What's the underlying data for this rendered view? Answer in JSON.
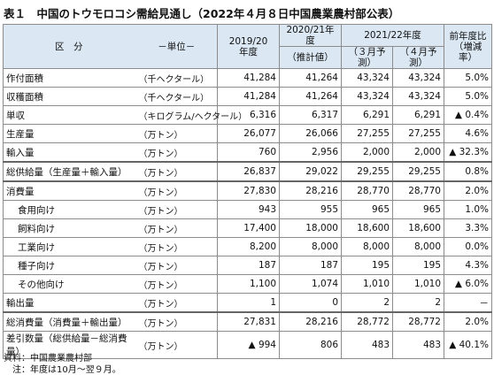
{
  "title": "表１　中国のトウモロコシ需給見通し（2022年４月８日中国農業農村部公表）",
  "header": {
    "category": "区　分",
    "unit": "－単位－",
    "col1": "2019/20\n年度",
    "col2": "2020/21年度",
    "col2_sub": "（推計値）",
    "col3": "2021/22年度",
    "col3_sub": [
      "（３月予測）",
      "（４月予測）"
    ],
    "col4": "前年度比\n（増減率）"
  },
  "rows": [
    {
      "label": "作付面積",
      "unit": "（千ヘクタール）",
      "values": [
        "41,284",
        "41,264",
        "43,324",
        "43,324",
        "5.0%"
      ]
    },
    {
      "label": "収穫面積",
      "unit": "（千ヘクタール）",
      "values": [
        "41,284",
        "41,264",
        "43,324",
        "43,324",
        "5.0%"
      ]
    },
    {
      "label": "単収",
      "unit": "（キログラム/ヘクタール）",
      "values": [
        "6,316",
        "6,317",
        "6,291",
        "6,291",
        "▲ 0.4%"
      ]
    },
    {
      "label": "生産量",
      "unit": "（万トン）",
      "values": [
        "26,077",
        "26,066",
        "27,255",
        "27,255",
        "4.6%"
      ]
    },
    {
      "label": "輸入量",
      "unit": "（万トン）",
      "values": [
        "760",
        "2,956",
        "2,000",
        "2,000",
        "▲ 32.3%"
      ]
    },
    {
      "label": "総供給量（生産量＋輸入量）",
      "unit": "（万トン）",
      "values": [
        "26,837",
        "29,022",
        "29,255",
        "29,255",
        "0.8%"
      ]
    },
    {
      "label": "消費量",
      "unit": "（万トン）",
      "values": [
        "27,830",
        "28,216",
        "28,770",
        "28,770",
        "2.0%"
      ],
      "items": [
        {
          "label": "食用向け",
          "unit": "（万トン）",
          "values": [
            "943",
            "955",
            "965",
            "965",
            "1.0%"
          ]
        },
        {
          "label": "飼料向け",
          "unit": "（万トン）",
          "values": [
            "17,400",
            "18,000",
            "18,600",
            "18,600",
            "3.3%"
          ]
        },
        {
          "label": "工業向け",
          "unit": "（万トン）",
          "values": [
            "8,200",
            "8,000",
            "8,000",
            "8,000",
            "0.0%"
          ]
        },
        {
          "label": "種子向け",
          "unit": "（万トン）",
          "values": [
            "187",
            "187",
            "195",
            "195",
            "4.3%"
          ]
        },
        {
          "label": "その他向け",
          "unit": "（万トン）",
          "values": [
            "1,100",
            "1,074",
            "1,010",
            "1,010",
            "▲ 6.0%"
          ]
        }
      ]
    },
    {
      "label": "輸出量",
      "unit": "（万トン）",
      "values": [
        "1",
        "0",
        "2",
        "2",
        "－"
      ]
    },
    {
      "label": "総消費量（消費量＋輸出量）",
      "unit": "（万トン）",
      "values": [
        "27,831",
        "28,216",
        "28,772",
        "28,772",
        "2.0%"
      ]
    },
    {
      "label": "差引数量（総供給量－総消費量）",
      "unit": "（万トン）",
      "values": [
        "▲ 994",
        "806",
        "483",
        "483",
        "▲ 40.1%"
      ]
    }
  ],
  "notes": [
    "資料：中国農業農村部",
    "　注：年度は10月～翌９月。"
  ]
}
